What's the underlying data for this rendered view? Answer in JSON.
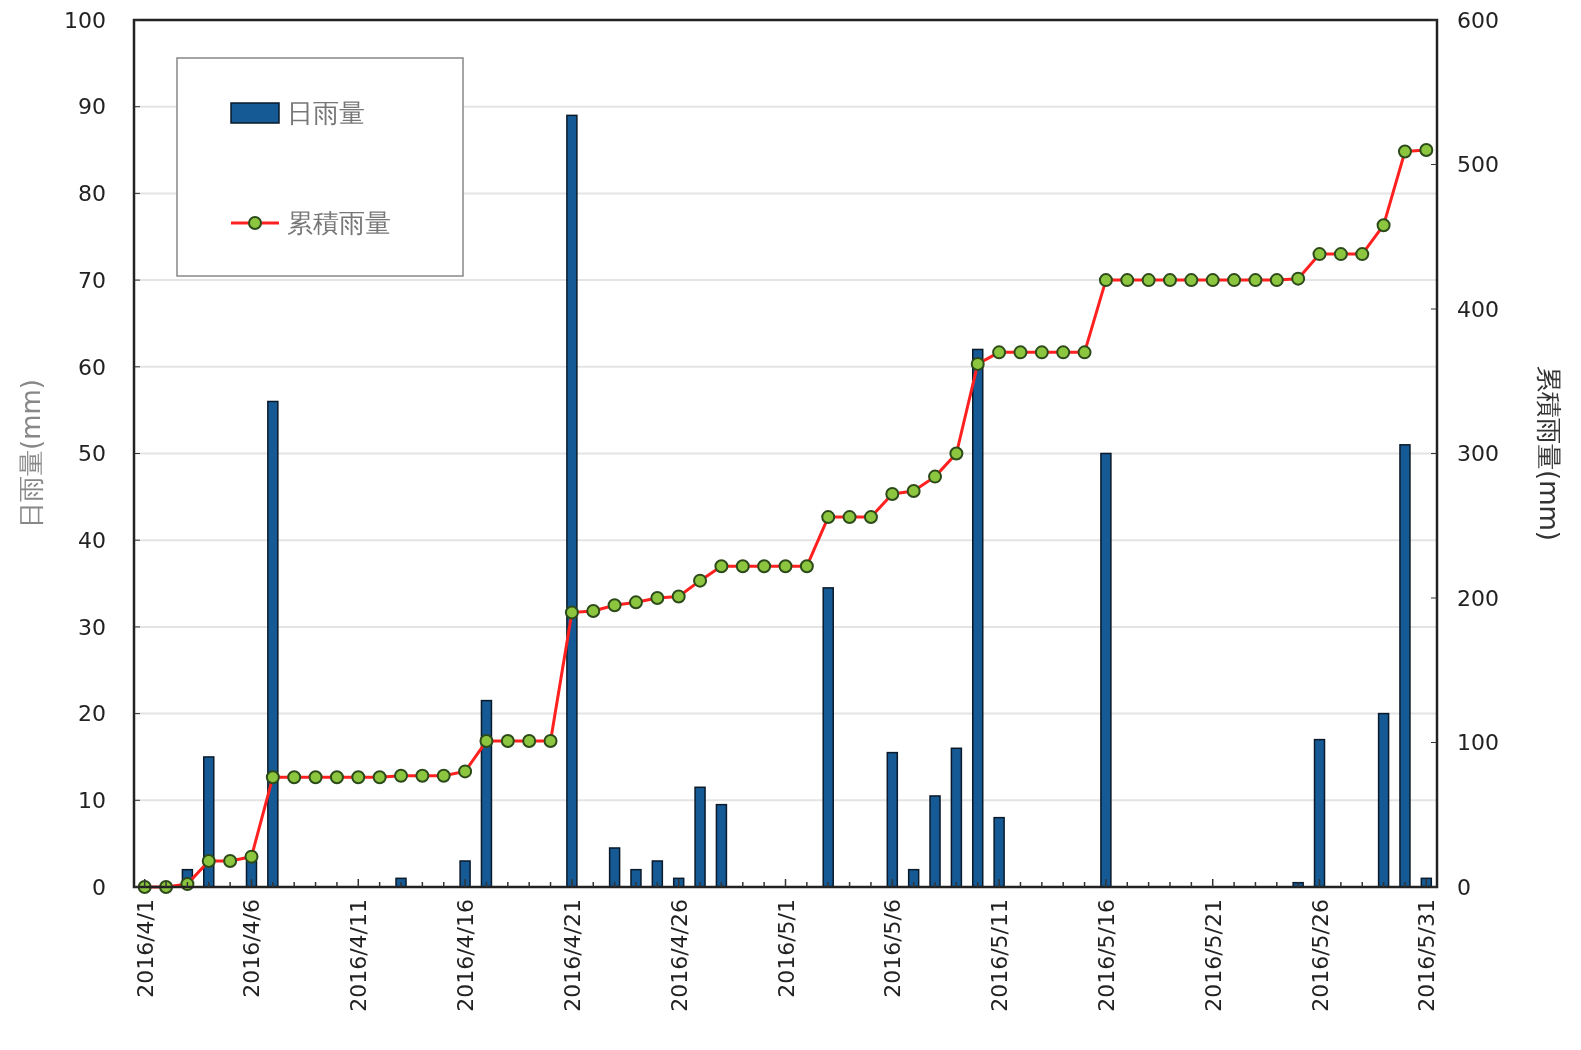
{
  "chart_data": {
    "type": "bar",
    "ylabel": "日雨量(mm)",
    "y2label": "累積雨量(mm)",
    "categories": [
      "2016/4/1",
      null,
      null,
      null,
      null,
      "2016/4/6",
      null,
      null,
      null,
      null,
      "2016/4/11",
      null,
      null,
      null,
      null,
      "2016/4/16",
      null,
      null,
      null,
      null,
      "2016/4/21",
      null,
      null,
      null,
      null,
      "2016/4/26",
      null,
      null,
      null,
      null,
      "2016/5/1",
      null,
      null,
      null,
      null,
      "2016/5/6",
      null,
      null,
      null,
      null,
      "2016/5/11",
      null,
      null,
      null,
      null,
      "2016/5/16",
      null,
      null,
      null,
      null,
      "2016/5/21",
      null,
      null,
      null,
      null,
      "2016/5/26",
      null,
      null,
      null,
      null,
      "2016/5/31"
    ],
    "series": [
      {
        "name": "日雨量",
        "color": "#155a94",
        "values": [
          0,
          0,
          2,
          15,
          0,
          3,
          56,
          0,
          0,
          0,
          0,
          0,
          1,
          0,
          0,
          3,
          21.5,
          0,
          0,
          0,
          89,
          0,
          4.5,
          2,
          3,
          1,
          11.5,
          9.5,
          0,
          0,
          0,
          0,
          34.5,
          0,
          0,
          15.5,
          2,
          10.5,
          16,
          62,
          8,
          0,
          0,
          0,
          0,
          50,
          0,
          0,
          0,
          0,
          0,
          0,
          0,
          0,
          0.5,
          17,
          0,
          0,
          20,
          51,
          1
        ]
      },
      {
        "name": "累積雨量",
        "type": "line",
        "axis": "y2",
        "color": "#ff2020",
        "values": [
          0,
          0,
          2,
          18,
          18,
          21,
          76,
          76,
          76,
          76,
          76,
          76,
          77,
          77,
          77,
          80,
          101,
          101,
          101,
          101,
          190,
          191,
          195,
          197,
          200,
          201,
          212,
          222,
          222,
          222,
          222,
          222,
          256,
          256,
          256,
          272,
          274,
          284,
          300,
          362,
          370,
          370,
          370,
          370,
          370,
          420,
          420,
          420,
          420,
          420,
          420,
          420,
          420,
          420,
          421,
          438,
          438,
          438,
          458,
          509,
          510
        ]
      }
    ],
    "ylim": [
      0,
      100
    ],
    "yticks": [
      0,
      10,
      20,
      30,
      40,
      50,
      60,
      70,
      80,
      90,
      100
    ],
    "y2lim": [
      0,
      600
    ],
    "y2ticks": [
      0,
      100,
      200,
      300,
      400,
      500,
      600
    ],
    "grid": "y",
    "legend": "top left",
    "marker": "circle",
    "line_style": "solid"
  }
}
